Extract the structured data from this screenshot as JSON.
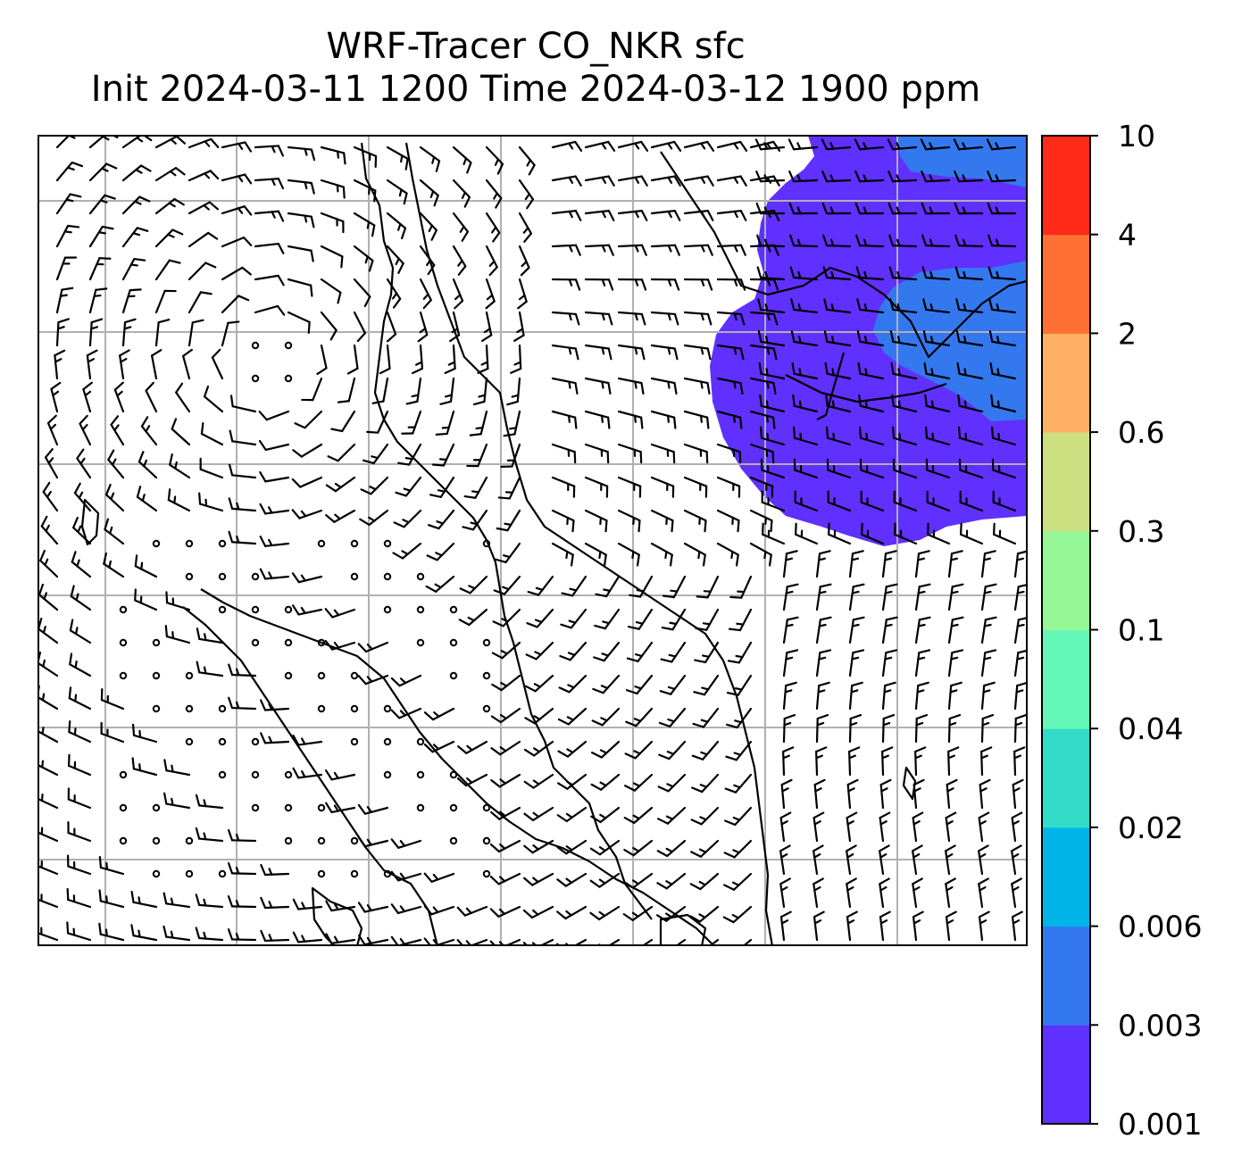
{
  "title": {
    "line1": "WRF-Tracer CO_NKR sfc",
    "line2": "Init 2024-03-11 1200 Time 2024-03-12 1900 ppm"
  },
  "colorbar": {
    "levels": [
      "0.001",
      "0.003",
      "0.006",
      "0.02",
      "0.04",
      "0.1",
      "0.3",
      "0.6",
      "2",
      "4",
      "10"
    ],
    "colors": [
      "#6030ff",
      "#3478f0",
      "#00b4e8",
      "#32dcc8",
      "#64f8b8",
      "#96f796",
      "#cce082",
      "#ffb064",
      "#ff7034",
      "#ff2a18"
    ]
  },
  "plume": {
    "outer_color": "#6030ff",
    "inner_color": "#3478f0"
  },
  "map": {
    "gridlines": true,
    "grid_color": "#b0b0b0",
    "wind_barbs": true,
    "coastline_color": "#000000"
  }
}
